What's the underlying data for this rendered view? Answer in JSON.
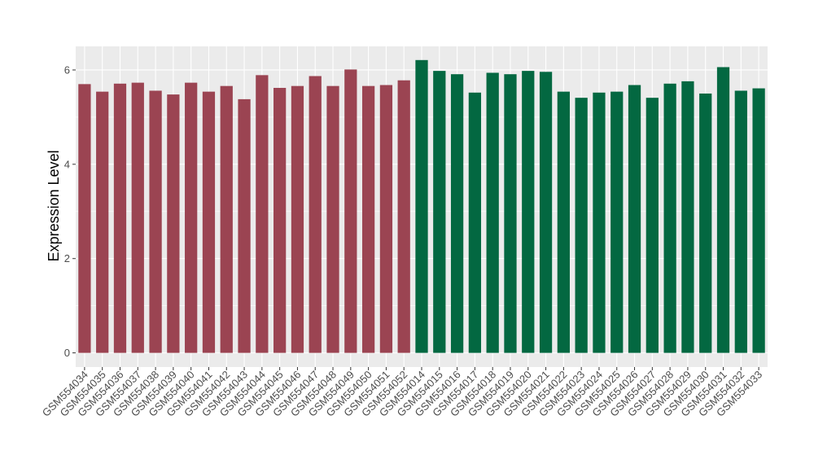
{
  "chart_data": {
    "type": "bar",
    "ylabel": "Expression Level",
    "xlabel": "",
    "title": "",
    "ylim": [
      -0.3,
      6.5
    ],
    "yticks": [
      0,
      2,
      4,
      6
    ],
    "grid": true,
    "colors": {
      "group_a": "#9b4452",
      "group_b": "#036841",
      "panel": "#ebebeb",
      "grid": "#ffffff"
    },
    "categories": [
      "GSM554034",
      "GSM554035",
      "GSM554036",
      "GSM554037",
      "GSM554038",
      "GSM554039",
      "GSM554040",
      "GSM554041",
      "GSM554042",
      "GSM554043",
      "GSM554044",
      "GSM554045",
      "GSM554046",
      "GSM554047",
      "GSM554048",
      "GSM554049",
      "GSM554050",
      "GSM554051",
      "GSM554052",
      "GSM554014",
      "GSM554015",
      "GSM554016",
      "GSM554017",
      "GSM554018",
      "GSM554019",
      "GSM554020",
      "GSM554021",
      "GSM554022",
      "GSM554023",
      "GSM554024",
      "GSM554025",
      "GSM554026",
      "GSM554027",
      "GSM554028",
      "GSM554029",
      "GSM554030",
      "GSM554031",
      "GSM554032",
      "GSM554033"
    ],
    "values": [
      5.7,
      5.54,
      5.71,
      5.73,
      5.56,
      5.48,
      5.73,
      5.54,
      5.66,
      5.38,
      5.89,
      5.62,
      5.66,
      5.87,
      5.66,
      6.01,
      5.66,
      5.68,
      5.78,
      6.21,
      5.98,
      5.91,
      5.52,
      5.94,
      5.91,
      5.98,
      5.96,
      5.54,
      5.41,
      5.52,
      5.54,
      5.68,
      5.41,
      5.71,
      5.76,
      5.5,
      6.06,
      5.56,
      5.61
    ],
    "groups": [
      "a",
      "a",
      "a",
      "a",
      "a",
      "a",
      "a",
      "a",
      "a",
      "a",
      "a",
      "a",
      "a",
      "a",
      "a",
      "a",
      "a",
      "a",
      "a",
      "b",
      "b",
      "b",
      "b",
      "b",
      "b",
      "b",
      "b",
      "b",
      "b",
      "b",
      "b",
      "b",
      "b",
      "b",
      "b",
      "b",
      "b",
      "b",
      "b"
    ]
  }
}
